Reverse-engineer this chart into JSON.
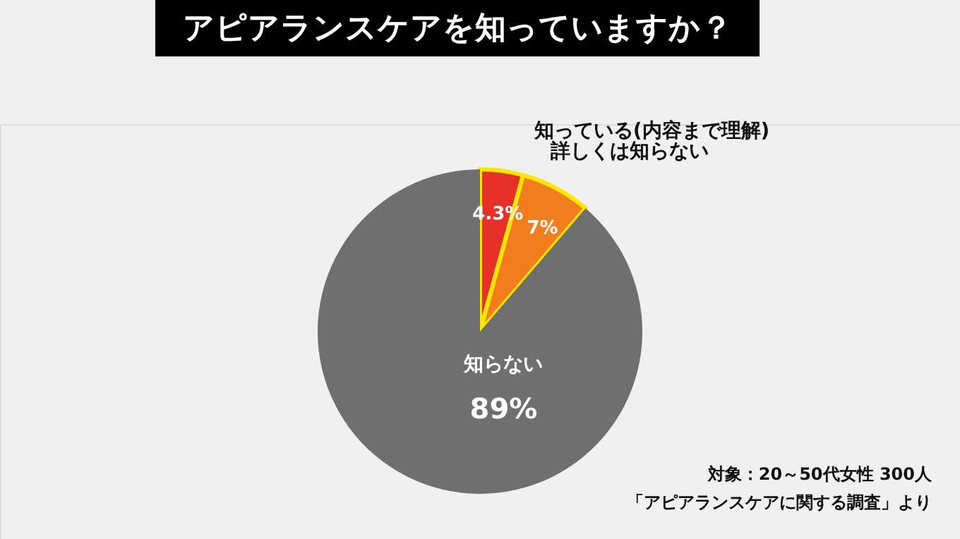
{
  "chart_data": {
    "type": "pie",
    "title": "アピアランスケアを知っていますか？",
    "categories": [
      "知っている(内容まで理解)",
      "詳しくは知らない",
      "知らない"
    ],
    "values": [
      4.3,
      7,
      89
    ],
    "colors": [
      "#e8302a",
      "#f27d1c",
      "#6f6f6f"
    ],
    "value_labels": [
      "4.3%",
      "7%",
      "89%"
    ],
    "annotations": [
      "対象：20～50代女性 300人",
      "「アピアランスケアに関する調査」より"
    ]
  }
}
